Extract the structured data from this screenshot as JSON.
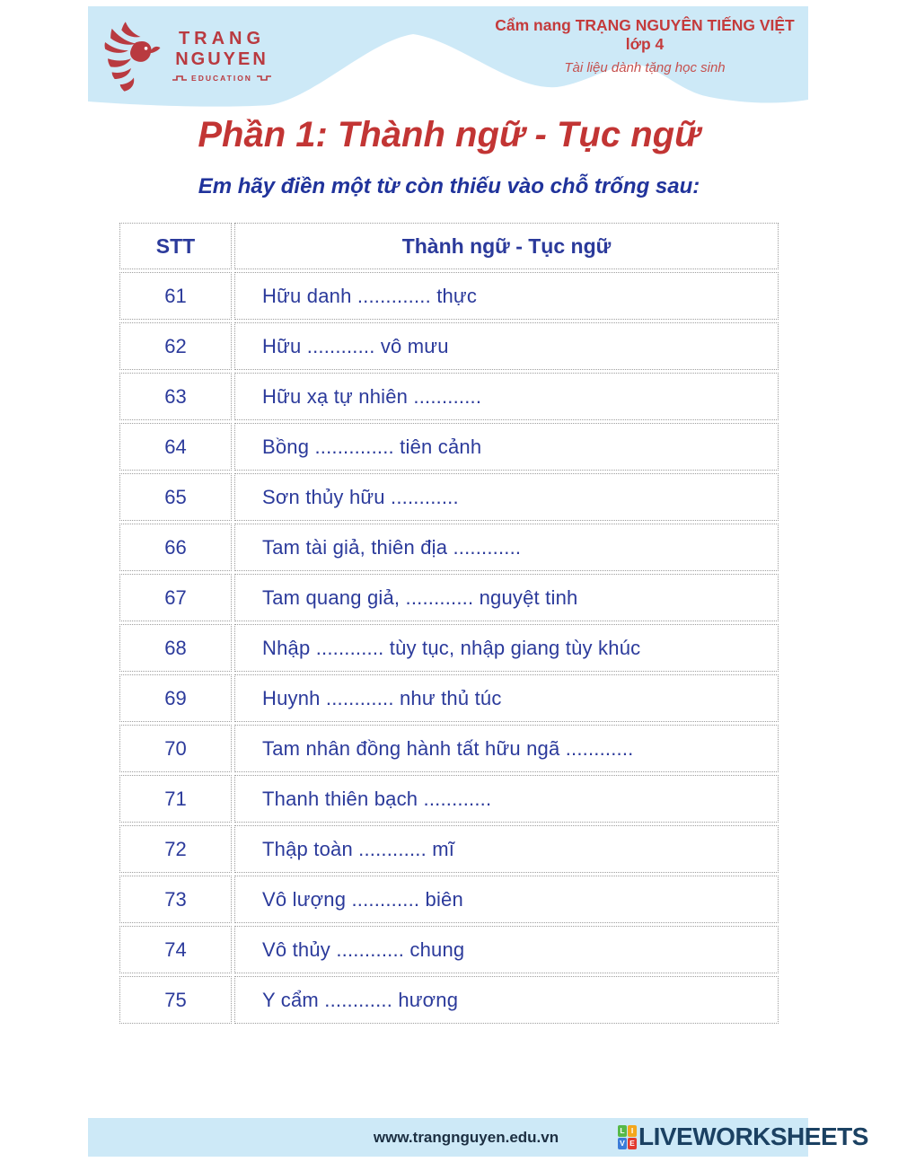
{
  "header": {
    "logo": {
      "line1": "TRANG",
      "line2": "NGUYEN",
      "line3": "EDUCATION"
    },
    "booklet_title": "Cẩm nang TRẠNG NGUYÊN TIẾNG VIỆT lớp 4",
    "booklet_subtitle": "Tài liệu dành tặng học sinh"
  },
  "main": {
    "title": "Phần 1: Thành ngữ - Tục ngữ",
    "instruction": "Em hãy điền một từ còn thiếu vào chỗ trống sau:"
  },
  "table": {
    "columns": [
      "STT",
      "Thành ngữ - Tục ngữ"
    ],
    "rows": [
      {
        "stt": "61",
        "phrase": "Hữu danh ............. thực"
      },
      {
        "stt": "62",
        "phrase": "Hữu ............ vô mưu"
      },
      {
        "stt": "63",
        "phrase": "Hữu xạ tự nhiên ............"
      },
      {
        "stt": "64",
        "phrase": "Bồng .............. tiên cảnh"
      },
      {
        "stt": "65",
        "phrase": "Sơn thủy hữu ............"
      },
      {
        "stt": "66",
        "phrase": "Tam tài giả, thiên địa ............"
      },
      {
        "stt": "67",
        "phrase": "Tam quang giả, ............ nguyệt tinh"
      },
      {
        "stt": "68",
        "phrase": "Nhập ............ tùy tục, nhập giang tùy khúc"
      },
      {
        "stt": "69",
        "phrase": "Huynh ............ như thủ túc"
      },
      {
        "stt": "70",
        "phrase": "Tam nhân đồng hành tất hữu ngã ............"
      },
      {
        "stt": "71",
        "phrase": "Thanh thiên bạch ............"
      },
      {
        "stt": "72",
        "phrase": "Thập toàn ............ mĩ"
      },
      {
        "stt": "73",
        "phrase": "Vô lượng ............ biên"
      },
      {
        "stt": "74",
        "phrase": "Vô thủy ............ chung"
      },
      {
        "stt": "75",
        "phrase": "Y cẩm ............ hương"
      }
    ]
  },
  "footer": {
    "website": "www.trangnguyen.edu.vn",
    "brand": "LIVEWORKSHEETS",
    "brand_grid": [
      "L",
      "I",
      "V",
      "E"
    ]
  },
  "colors": {
    "band_blue": "#cde9f7",
    "accent_red": "#c23534",
    "logo_red": "#b93a40",
    "text_navy": "#2b3a9b",
    "instruction_blue": "#20339b",
    "brand_navy": "#1b4162",
    "grid_green": "#56b947",
    "grid_yellow": "#f3a71c",
    "grid_blue": "#3b7cd8",
    "grid_red": "#e23a2e"
  }
}
